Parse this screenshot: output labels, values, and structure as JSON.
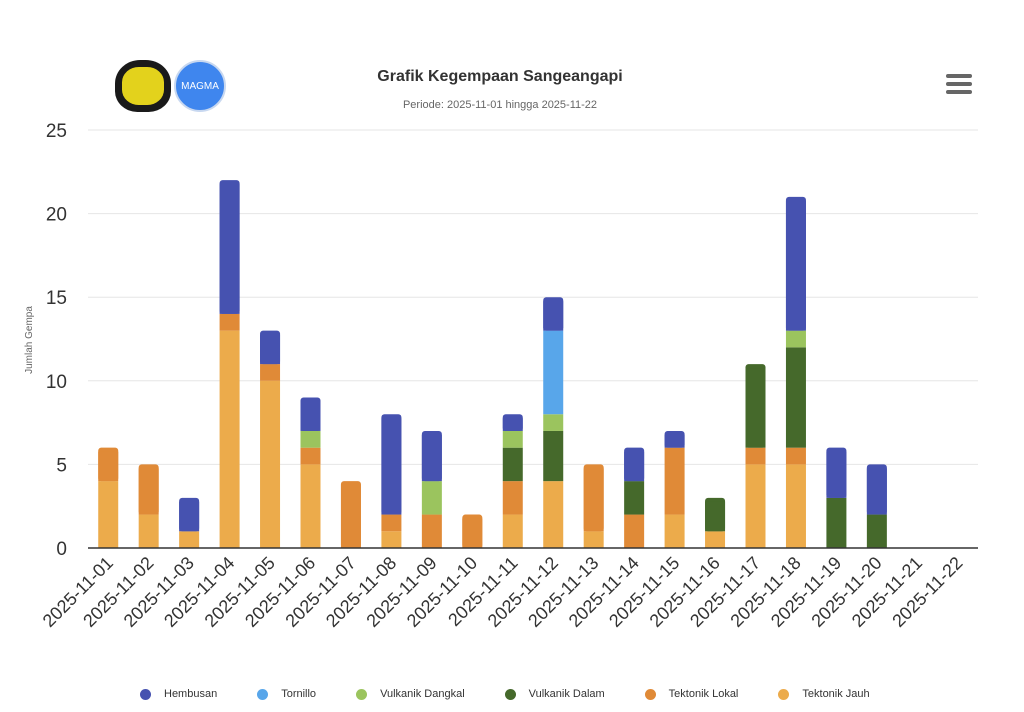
{
  "header": {
    "title": "Grafik Kegempaan Sangeangapi",
    "subtitle": "Periode: 2025-11-01 hingga 2025-11-22",
    "logo1": "ESDM",
    "logo2": "MAGMA"
  },
  "chart_data": {
    "type": "bar",
    "stacked": true,
    "title": "Grafik Kegempaan Sangeangapi",
    "subtitle": "Periode: 2025-11-01 hingga 2025-11-22",
    "xlabel": "",
    "ylabel": "Jumlah Gempa",
    "ylim": [
      0,
      25
    ],
    "yticks": [
      "0",
      "5",
      "10",
      "15",
      "20",
      "25"
    ],
    "grid": true,
    "legend": "bottom",
    "categories": [
      "2025-11-01",
      "2025-11-02",
      "2025-11-03",
      "2025-11-04",
      "2025-11-05",
      "2025-11-06",
      "2025-11-07",
      "2025-11-08",
      "2025-11-09",
      "2025-11-10",
      "2025-11-11",
      "2025-11-12",
      "2025-11-13",
      "2025-11-14",
      "2025-11-15",
      "2025-11-16",
      "2025-11-17",
      "2025-11-18",
      "2025-11-19",
      "2025-11-20",
      "2025-11-21",
      "2025-11-22"
    ],
    "series": [
      {
        "name": "Tektonik Jauh",
        "color": "#ecab4b",
        "values": [
          4,
          2,
          1,
          13,
          10,
          5,
          0,
          1,
          0,
          0,
          2,
          4,
          1,
          0,
          2,
          1,
          5,
          5,
          0,
          0,
          0,
          0
        ]
      },
      {
        "name": "Tektonik Lokal",
        "color": "#e08a37",
        "values": [
          2,
          3,
          0,
          1,
          1,
          1,
          4,
          1,
          2,
          2,
          2,
          0,
          4,
          2,
          4,
          0,
          1,
          1,
          0,
          0,
          0,
          0
        ]
      },
      {
        "name": "Vulkanik Dalam",
        "color": "#45692b",
        "values": [
          0,
          0,
          0,
          0,
          0,
          0,
          0,
          0,
          0,
          0,
          2,
          3,
          0,
          2,
          0,
          2,
          5,
          6,
          3,
          2,
          0,
          0
        ]
      },
      {
        "name": "Vulkanik Dangkal",
        "color": "#9bc45e",
        "values": [
          0,
          0,
          0,
          0,
          0,
          1,
          0,
          0,
          2,
          0,
          1,
          1,
          0,
          0,
          0,
          0,
          0,
          1,
          0,
          0,
          0,
          0
        ]
      },
      {
        "name": "Tornillo",
        "color": "#58a6ea",
        "values": [
          0,
          0,
          0,
          0,
          0,
          0,
          0,
          0,
          0,
          0,
          0,
          5,
          0,
          0,
          0,
          0,
          0,
          0,
          0,
          0,
          0,
          0
        ]
      },
      {
        "name": "Hembusan",
        "color": "#4652b0",
        "values": [
          0,
          0,
          2,
          8,
          2,
          2,
          0,
          6,
          3,
          0,
          1,
          2,
          0,
          2,
          1,
          0,
          0,
          8,
          3,
          3,
          0,
          0
        ]
      }
    ],
    "legend_order": [
      "Hembusan",
      "Tornillo",
      "Vulkanik Dangkal",
      "Vulkanik Dalam",
      "Tektonik Lokal",
      "Tektonik Jauh"
    ]
  }
}
